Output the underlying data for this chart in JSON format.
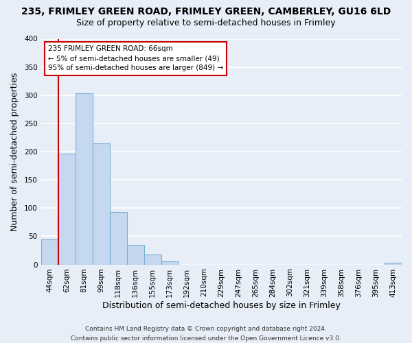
{
  "title": "235, FRIMLEY GREEN ROAD, FRIMLEY GREEN, CAMBERLEY, GU16 6LD",
  "subtitle": "Size of property relative to semi-detached houses in Frimley",
  "xlabel": "Distribution of semi-detached houses by size in Frimley",
  "ylabel": "Number of semi-detached properties",
  "bin_labels": [
    "44sqm",
    "62sqm",
    "81sqm",
    "99sqm",
    "118sqm",
    "136sqm",
    "155sqm",
    "173sqm",
    "192sqm",
    "210sqm",
    "229sqm",
    "247sqm",
    "265sqm",
    "284sqm",
    "302sqm",
    "321sqm",
    "339sqm",
    "358sqm",
    "376sqm",
    "395sqm",
    "413sqm"
  ],
  "bar_heights": [
    44,
    197,
    303,
    215,
    93,
    35,
    18,
    5,
    0,
    0,
    0,
    0,
    0,
    0,
    0,
    0,
    0,
    0,
    0,
    0,
    3
  ],
  "bar_color": "#c5d8f0",
  "bar_edge_color": "#7aafd4",
  "highlight_line_color": "#cc0000",
  "annotation_title": "235 FRIMLEY GREEN ROAD: 66sqm",
  "annotation_line1": "← 5% of semi-detached houses are smaller (49)",
  "annotation_line2": "95% of semi-detached houses are larger (849) →",
  "annotation_box_color": "#ffffff",
  "annotation_box_edge": "#cc0000",
  "ylim": [
    0,
    400
  ],
  "yticks": [
    0,
    50,
    100,
    150,
    200,
    250,
    300,
    350,
    400
  ],
  "footer_line1": "Contains HM Land Registry data © Crown copyright and database right 2024.",
  "footer_line2": "Contains public sector information licensed under the Open Government Licence v3.0.",
  "background_color": "#e8eef7",
  "plot_background_color": "#e8eef7",
  "grid_color": "#ffffff",
  "title_fontsize": 10,
  "subtitle_fontsize": 9,
  "tick_fontsize": 7.5,
  "axis_label_fontsize": 9,
  "annotation_fontsize": 7.5,
  "footer_fontsize": 6.5
}
